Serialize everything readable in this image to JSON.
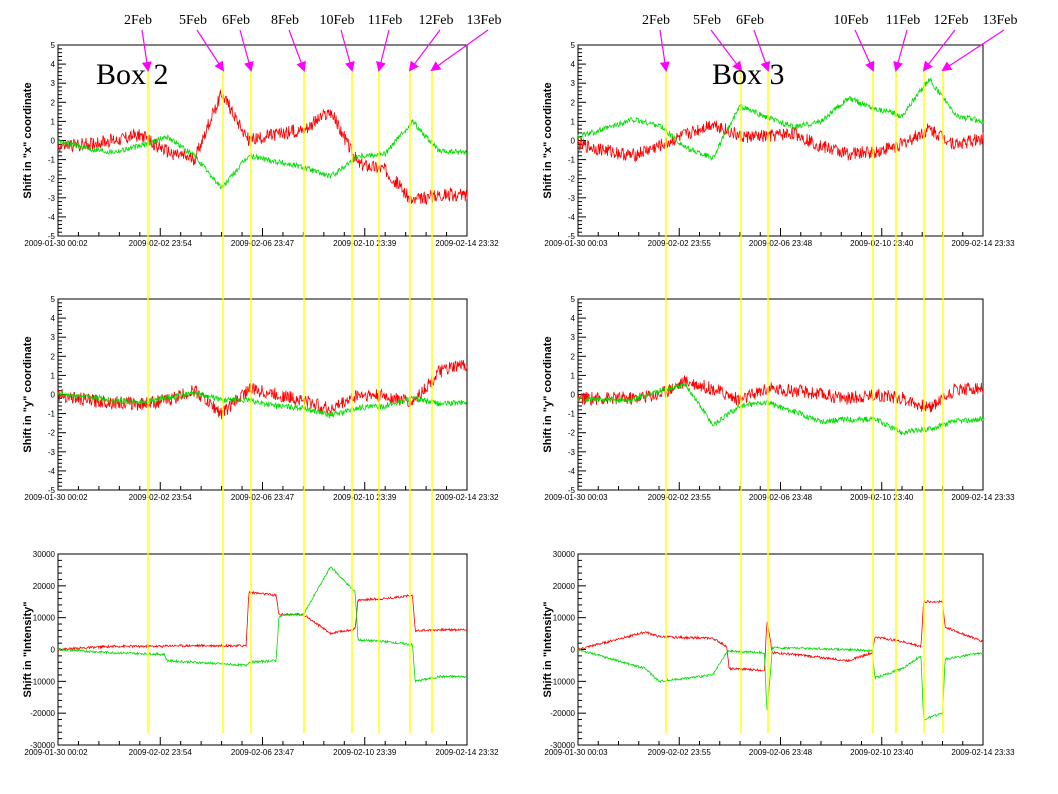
{
  "colors": {
    "series_a": "#ff0000",
    "series_b": "#00dd00",
    "marker": "#ffff00",
    "arrow": "#ff00ff"
  },
  "chart_data": [
    {
      "type": "line",
      "box": "Box 2",
      "date_arrows": [
        "2Feb",
        "5Feb",
        "6Feb",
        "8Feb",
        "10Feb",
        "11Feb",
        "12Feb",
        "13Feb"
      ],
      "x_ticks": [
        "2009-01-30 00:02",
        "2009-02-02 23:54",
        "2009-02-06 23:47",
        "2009-02-10 23:39",
        "2009-02-14 23:32"
      ],
      "panels": [
        {
          "ylabel": "Shift in \"x\" coordinate",
          "ylim": [
            -5,
            5
          ],
          "y_ticks": [
            "5",
            "4",
            "3",
            "2",
            "1",
            "0",
            "-1",
            "-2",
            "-3",
            "-4",
            "-5"
          ]
        },
        {
          "ylabel": "Shift in \"y\" coordinate",
          "ylim": [
            -5,
            5
          ],
          "y_ticks": [
            "5",
            "4",
            "3",
            "2",
            "1",
            "0",
            "-1",
            "-2",
            "-3",
            "-4",
            "-5"
          ]
        },
        {
          "ylabel": "Shift in \"Intensity\"",
          "ylim": [
            -30000,
            30000
          ],
          "y_ticks": [
            "30000",
            "20000",
            "10000",
            "0",
            "-10000",
            "-20000",
            "-30000"
          ]
        }
      ],
      "series": [
        {
          "panel": 0,
          "color": "red",
          "days": [
            0,
            1,
            2,
            3,
            4,
            5,
            6,
            7,
            8,
            9,
            10,
            11,
            12,
            13,
            14,
            15
          ],
          "values": [
            -0.3,
            -0.2,
            0,
            0.3,
            -0.6,
            -1.0,
            2.5,
            0,
            0.3,
            0.6,
            1.5,
            -1.2,
            -1.5,
            -3.2,
            -2.8,
            -2.9
          ]
        },
        {
          "panel": 0,
          "color": "green",
          "days": [
            0,
            1,
            2,
            3,
            4,
            5,
            6,
            7,
            8,
            9,
            10,
            11,
            12,
            13,
            14,
            15
          ],
          "values": [
            0,
            -0.4,
            -0.6,
            -0.3,
            0.2,
            -0.8,
            -2.5,
            -0.8,
            -1.1,
            -1.4,
            -1.9,
            -0.8,
            -0.7,
            1.0,
            -0.6,
            -0.6
          ]
        },
        {
          "panel": 1,
          "color": "red",
          "days": [
            0,
            1,
            2,
            3,
            4,
            5,
            6,
            7,
            8,
            9,
            10,
            11,
            12,
            13,
            14,
            15
          ],
          "values": [
            0,
            -0.3,
            -0.4,
            -0.5,
            -0.3,
            0.2,
            -1.0,
            0.3,
            0.0,
            -0.3,
            -0.8,
            0.0,
            -0.1,
            -0.4,
            1.2,
            1.6
          ]
        },
        {
          "panel": 1,
          "color": "green",
          "days": [
            0,
            1,
            2,
            3,
            4,
            5,
            6,
            7,
            8,
            9,
            10,
            11,
            12,
            13,
            14,
            15
          ],
          "values": [
            0,
            -0.1,
            -0.3,
            -0.4,
            -0.2,
            0.1,
            -0.3,
            -0.3,
            -0.6,
            -0.7,
            -1.1,
            -0.7,
            -0.6,
            -0.2,
            -0.5,
            -0.4
          ]
        },
        {
          "panel": 2,
          "color": "red",
          "days": [
            0,
            2,
            3.9,
            4.0,
            6.9,
            7.0,
            8.0,
            8.1,
            9.0,
            10.0,
            10.9,
            11.0,
            12.0,
            13.0,
            13.1,
            14.0,
            15.0
          ],
          "values": [
            0,
            1000,
            1000,
            1200,
            1200,
            18000,
            17000,
            11000,
            11000,
            5000,
            6500,
            15500,
            16000,
            17000,
            6000,
            6200,
            6200
          ]
        },
        {
          "panel": 2,
          "color": "green",
          "days": [
            0,
            2,
            3.9,
            4.0,
            6.9,
            7.0,
            8.0,
            8.1,
            8.3,
            9.0,
            10.0,
            10.9,
            11.0,
            12.0,
            13.0,
            13.1,
            14.0,
            15.0
          ],
          "values": [
            0,
            -1000,
            -1500,
            -3500,
            -5000,
            -4000,
            -3500,
            10000,
            11000,
            11000,
            26000,
            18000,
            3000,
            2500,
            1500,
            -10000,
            -8500,
            -8500
          ]
        }
      ]
    },
    {
      "type": "line",
      "box": "Box 3",
      "date_arrows": [
        "2Feb",
        "5Feb",
        "6Feb",
        "10Feb",
        "11Feb",
        "12Feb",
        "13Feb"
      ],
      "x_ticks": [
        "2009-01-30 00:03",
        "2009-02-02 23:55",
        "2009-02-06 23:48",
        "2009-02-10 23:40",
        "2009-02-14 23:33"
      ],
      "panels": [
        {
          "ylabel": "Shift in \"x\" coordinate",
          "ylim": [
            -5,
            5
          ],
          "y_ticks": [
            "5",
            "4",
            "3",
            "2",
            "1",
            "0",
            "-1",
            "-2",
            "-3",
            "-4",
            "-5"
          ]
        },
        {
          "ylabel": "Shift in \"y\" coordinate",
          "ylim": [
            -5,
            5
          ],
          "y_ticks": [
            "5",
            "4",
            "3",
            "2",
            "1",
            "0",
            "-1",
            "-2",
            "-3",
            "-4",
            "-5"
          ]
        },
        {
          "ylabel": "Shift in \"Intensity\"",
          "ylim": [
            -30000,
            30000
          ],
          "y_ticks": [
            "30000",
            "20000",
            "10000",
            "0",
            "-10000",
            "-20000",
            "-30000"
          ]
        }
      ],
      "series": [
        {
          "panel": 0,
          "color": "red",
          "days": [
            0,
            1,
            2,
            3,
            4,
            5,
            6,
            7,
            8,
            9,
            10,
            11,
            12,
            13,
            14,
            15
          ],
          "values": [
            -0.2,
            -0.5,
            -0.8,
            -0.3,
            0.3,
            0.9,
            0.2,
            0.2,
            0.4,
            -0.3,
            -0.7,
            -0.6,
            -0.2,
            0.6,
            -0.2,
            0.1
          ]
        },
        {
          "panel": 0,
          "color": "green",
          "days": [
            0,
            1,
            2,
            3,
            4,
            5,
            6,
            7,
            8,
            9,
            10,
            11,
            12,
            13,
            14,
            15
          ],
          "values": [
            0.2,
            0.6,
            1.1,
            0.8,
            -0.4,
            -0.9,
            1.8,
            1.2,
            0.7,
            1.0,
            2.2,
            1.7,
            1.3,
            3.2,
            1.3,
            1.0
          ]
        },
        {
          "panel": 1,
          "color": "red",
          "days": [
            0,
            1,
            2,
            3,
            4,
            5,
            6,
            7,
            8,
            9,
            10,
            11,
            12,
            13,
            14,
            15
          ],
          "values": [
            -0.2,
            -0.2,
            -0.2,
            0.0,
            0.7,
            0.3,
            -0.3,
            0.3,
            0.2,
            0.0,
            -0.2,
            0.0,
            -0.2,
            -0.7,
            0.3,
            0.3
          ]
        },
        {
          "panel": 1,
          "color": "green",
          "days": [
            0,
            1,
            2,
            3,
            4,
            5,
            6,
            7,
            8,
            9,
            10,
            11,
            12,
            13,
            14,
            15
          ],
          "values": [
            -0.2,
            -0.3,
            -0.3,
            0.2,
            0.5,
            -1.6,
            -0.6,
            -0.4,
            -0.9,
            -1.4,
            -1.3,
            -1.3,
            -2.0,
            -1.8,
            -1.4,
            -1.3
          ]
        },
        {
          "panel": 2,
          "color": "red",
          "days": [
            0,
            2.5,
            3.0,
            5.0,
            5.5,
            5.6,
            6.9,
            7.0,
            7.2,
            8.0,
            10.0,
            10.9,
            11.0,
            12.0,
            12.7,
            12.8,
            13.5,
            13.6,
            15.0
          ],
          "values": [
            0,
            5500,
            4000,
            3500,
            1000,
            -6000,
            -6500,
            9000,
            -1000,
            -1500,
            -3500,
            -1000,
            4000,
            2500,
            1000,
            15000,
            15000,
            7000,
            2500
          ]
        },
        {
          "panel": 2,
          "color": "green",
          "days": [
            0,
            2.5,
            3.0,
            5.0,
            5.5,
            5.6,
            6.9,
            7.0,
            7.2,
            8.0,
            10.0,
            10.9,
            11.0,
            12.0,
            12.7,
            12.8,
            13.5,
            13.6,
            15.0
          ],
          "values": [
            0,
            -6000,
            -10000,
            -8000,
            -1000,
            -500,
            -1000,
            -20000,
            500,
            500,
            0,
            -500,
            -9000,
            -6000,
            -2000,
            -22000,
            -20000,
            -3000,
            -1000
          ]
        }
      ]
    }
  ]
}
